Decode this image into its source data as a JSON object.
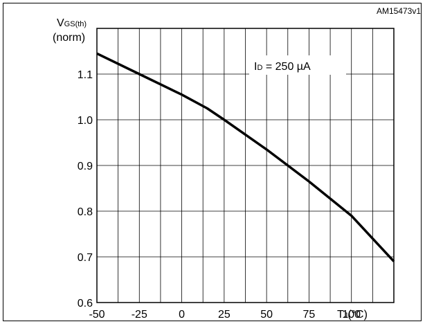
{
  "chart_data": {
    "type": "line",
    "code_label": "AM15473v1",
    "y_label_main": "V",
    "y_label_sub": "GS(th)",
    "y_label_line2": "(norm)",
    "x_label_main": "T",
    "x_label_sub": "J",
    "x_label_unit": "(°C)",
    "annotation_main": "I",
    "annotation_sub": "D",
    "annotation_rest": " = 250 µA",
    "xlim": [
      -50,
      125
    ],
    "ylim": [
      0.6,
      1.2
    ],
    "x_ticks": [
      "-50",
      "-25",
      "0",
      "25",
      "50",
      "75",
      "100"
    ],
    "y_ticks": [
      "0.6",
      "0.7",
      "0.8",
      "0.9",
      "1.0",
      "1.1"
    ],
    "grid": true,
    "line_color": "#000000",
    "series": [
      {
        "x": [
          -50,
          -25,
          0,
          15,
          25,
          50,
          75,
          100,
          125
        ],
        "y": [
          1.145,
          1.1,
          1.055,
          1.025,
          1.0,
          0.935,
          0.865,
          0.79,
          0.69
        ]
      }
    ]
  }
}
